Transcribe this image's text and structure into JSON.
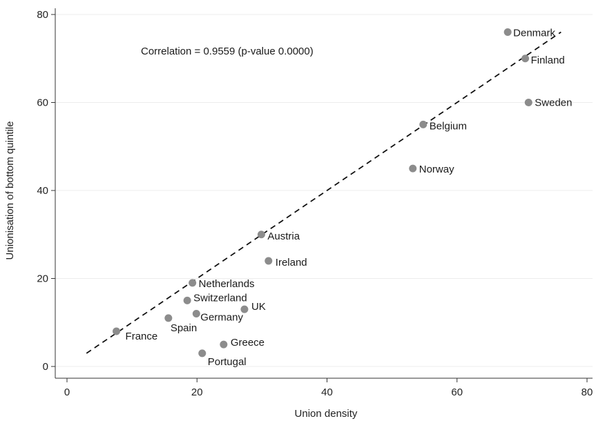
{
  "chart_data": {
    "type": "scatter",
    "title": "",
    "xlabel": "Union density",
    "ylabel": "Unionisation of bottom quintile",
    "xlim": [
      0,
      80
    ],
    "ylim": [
      0,
      80
    ],
    "xticks": [
      0,
      20,
      40,
      60,
      80
    ],
    "yticks": [
      0,
      20,
      40,
      60,
      80
    ],
    "grid": "horizontal",
    "annotation": "Correlation = 0.9559 (p-value 0.0000)",
    "points": [
      {
        "label": "Denmark",
        "x": 67.8,
        "y": 76
      },
      {
        "label": "Finland",
        "x": 70.5,
        "y": 70
      },
      {
        "label": "Sweden",
        "x": 71,
        "y": 60
      },
      {
        "label": "Belgium",
        "x": 54.8,
        "y": 55
      },
      {
        "label": "Norway",
        "x": 53.2,
        "y": 45
      },
      {
        "label": "Austria",
        "x": 29.9,
        "y": 30
      },
      {
        "label": "Ireland",
        "x": 31,
        "y": 24
      },
      {
        "label": "Netherlands",
        "x": 19.3,
        "y": 19
      },
      {
        "label": "Switzerland",
        "x": 18.5,
        "y": 15
      },
      {
        "label": "UK",
        "x": 27.3,
        "y": 13
      },
      {
        "label": "Germany",
        "x": 19.9,
        "y": 12
      },
      {
        "label": "Spain",
        "x": 15.6,
        "y": 11
      },
      {
        "label": "France",
        "x": 7.6,
        "y": 8
      },
      {
        "label": "Greece",
        "x": 24.1,
        "y": 5
      },
      {
        "label": "Portugal",
        "x": 20.8,
        "y": 3
      }
    ],
    "fit_line": {
      "x": [
        3,
        76
      ],
      "y": [
        3,
        76
      ],
      "style": "dashed"
    },
    "colors": {
      "point": "#8c8c8c",
      "line": "#111111",
      "grid": "#ececec",
      "axis": "#333333"
    }
  }
}
